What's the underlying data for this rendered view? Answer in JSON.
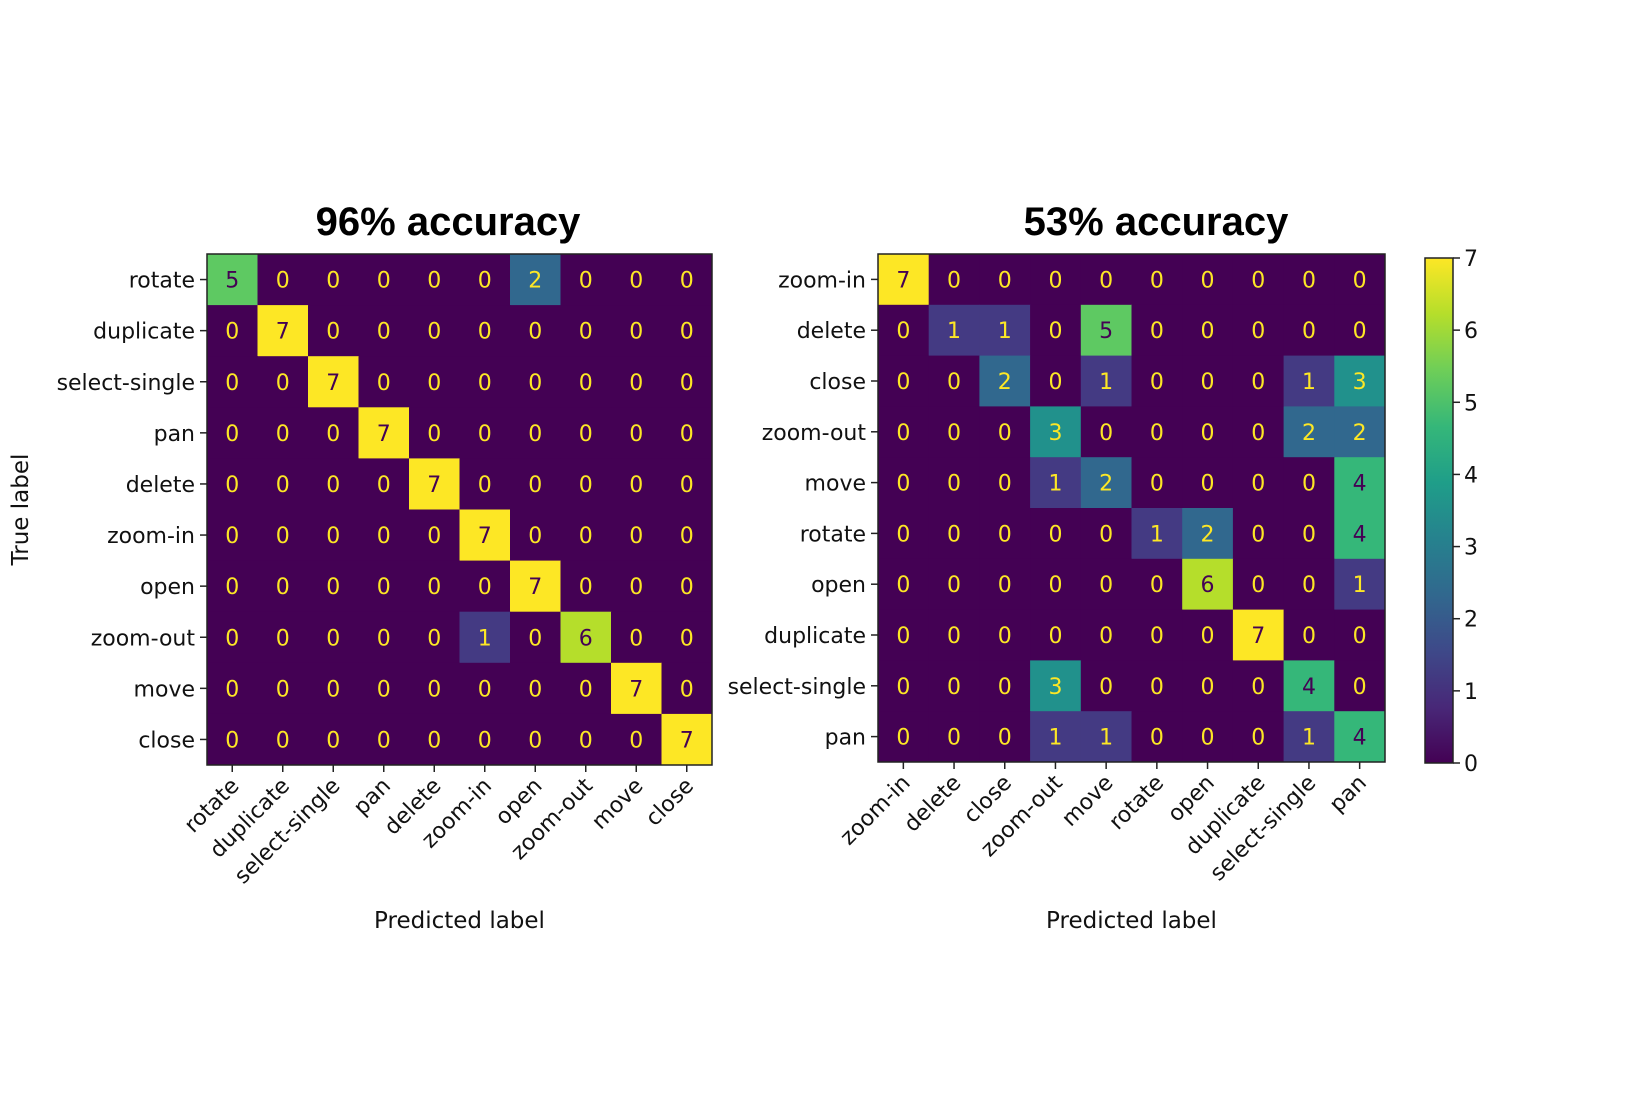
{
  "chart_data": [
    {
      "type": "heatmap",
      "title": "96% accuracy",
      "xlabel": "Predicted label",
      "ylabel": "True label",
      "row_labels": [
        "rotate",
        "duplicate",
        "select-single",
        "pan",
        "delete",
        "zoom-in",
        "open",
        "zoom-out",
        "move",
        "close"
      ],
      "col_labels": [
        "rotate",
        "duplicate",
        "select-single",
        "pan",
        "delete",
        "zoom-in",
        "open",
        "zoom-out",
        "move",
        "close"
      ],
      "values": [
        [
          5,
          0,
          0,
          0,
          0,
          0,
          2,
          0,
          0,
          0
        ],
        [
          0,
          7,
          0,
          0,
          0,
          0,
          0,
          0,
          0,
          0
        ],
        [
          0,
          0,
          7,
          0,
          0,
          0,
          0,
          0,
          0,
          0
        ],
        [
          0,
          0,
          0,
          7,
          0,
          0,
          0,
          0,
          0,
          0
        ],
        [
          0,
          0,
          0,
          0,
          7,
          0,
          0,
          0,
          0,
          0
        ],
        [
          0,
          0,
          0,
          0,
          0,
          7,
          0,
          0,
          0,
          0
        ],
        [
          0,
          0,
          0,
          0,
          0,
          0,
          7,
          0,
          0,
          0
        ],
        [
          0,
          0,
          0,
          0,
          0,
          1,
          0,
          6,
          0,
          0
        ],
        [
          0,
          0,
          0,
          0,
          0,
          0,
          0,
          0,
          7,
          0
        ],
        [
          0,
          0,
          0,
          0,
          0,
          0,
          0,
          0,
          0,
          7
        ]
      ],
      "vmin": 0,
      "vmax": 7,
      "colormap": "viridis"
    },
    {
      "type": "heatmap",
      "title": "53% accuracy",
      "xlabel": "Predicted label",
      "ylabel": "",
      "row_labels": [
        "zoom-in",
        "delete",
        "close",
        "zoom-out",
        "move",
        "rotate",
        "open",
        "duplicate",
        "select-single",
        "pan"
      ],
      "col_labels": [
        "zoom-in",
        "delete",
        "close",
        "zoom-out",
        "move",
        "rotate",
        "open",
        "duplicate",
        "select-single",
        "pan"
      ],
      "values": [
        [
          7,
          0,
          0,
          0,
          0,
          0,
          0,
          0,
          0,
          0
        ],
        [
          0,
          1,
          1,
          0,
          5,
          0,
          0,
          0,
          0,
          0
        ],
        [
          0,
          0,
          2,
          0,
          1,
          0,
          0,
          0,
          1,
          3
        ],
        [
          0,
          0,
          0,
          3,
          0,
          0,
          0,
          0,
          2,
          2
        ],
        [
          0,
          0,
          0,
          1,
          2,
          0,
          0,
          0,
          0,
          4
        ],
        [
          0,
          0,
          0,
          0,
          0,
          1,
          2,
          0,
          0,
          4
        ],
        [
          0,
          0,
          0,
          0,
          0,
          0,
          6,
          0,
          0,
          1
        ],
        [
          0,
          0,
          0,
          0,
          0,
          0,
          0,
          7,
          0,
          0
        ],
        [
          0,
          0,
          0,
          3,
          0,
          0,
          0,
          0,
          4,
          0
        ],
        [
          0,
          0,
          0,
          1,
          1,
          0,
          0,
          0,
          1,
          4
        ]
      ],
      "vmin": 0,
      "vmax": 7,
      "colormap": "viridis",
      "colorbar_ticks": [
        0,
        1,
        2,
        3,
        4,
        5,
        6,
        7
      ]
    }
  ]
}
